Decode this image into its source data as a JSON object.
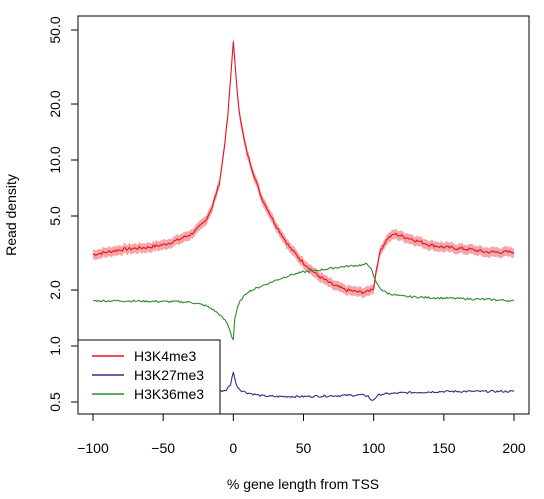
{
  "chart_data": {
    "type": "line",
    "title": "",
    "xlabel": "% gene length from TSS",
    "ylabel": "Read density",
    "x_ticks": [
      "-100",
      "-50",
      "0",
      "50",
      "100",
      "150",
      "200"
    ],
    "y_ticks": [
      "0.5",
      "1.0",
      "2.0",
      "5.0",
      "10.0",
      "20.0",
      "50.0"
    ],
    "x_tick_values": [
      -100,
      -50,
      0,
      50,
      100,
      150,
      200
    ],
    "y_tick_values": [
      0.5,
      1.0,
      2.0,
      5.0,
      10.0,
      20.0,
      50.0
    ],
    "xlim": [
      -108,
      208
    ],
    "ylim": [
      0.42,
      52
    ],
    "y_scale": "log",
    "grid": false,
    "legend_position": "bottom-left",
    "series": [
      {
        "name": "H3K4me3",
        "color": "#e8141b",
        "band_color": "#f4a6a8",
        "x": [
          -100,
          -90,
          -80,
          -70,
          -60,
          -50,
          -40,
          -30,
          -25,
          -20,
          -15,
          -10,
          -8,
          -6,
          -4,
          -2,
          0,
          2,
          4,
          6,
          8,
          10,
          15,
          20,
          30,
          40,
          50,
          60,
          70,
          80,
          90,
          95,
          100,
          102,
          105,
          110,
          115,
          120,
          130,
          140,
          150,
          160,
          170,
          180,
          190,
          200
        ],
        "values": [
          3.1,
          3.2,
          3.3,
          3.35,
          3.4,
          3.5,
          3.7,
          4.0,
          4.3,
          4.7,
          5.6,
          7.5,
          9.5,
          12.5,
          17.0,
          27.0,
          44.0,
          27.0,
          19.0,
          15.0,
          12.5,
          10.8,
          8.2,
          6.3,
          4.5,
          3.4,
          2.8,
          2.4,
          2.15,
          2.0,
          1.95,
          1.95,
          2.05,
          2.6,
          3.3,
          3.8,
          4.0,
          3.9,
          3.7,
          3.5,
          3.4,
          3.35,
          3.3,
          3.2,
          3.2,
          3.2
        ]
      },
      {
        "name": "H3K27me3",
        "color": "#2b2f8f",
        "x": [
          -100,
          -80,
          -60,
          -40,
          -20,
          -10,
          -5,
          -2,
          0,
          2,
          5,
          10,
          15,
          20,
          30,
          50,
          70,
          90,
          96,
          98,
          100,
          102,
          105,
          120,
          150,
          200
        ],
        "values": [
          0.55,
          0.555,
          0.56,
          0.56,
          0.56,
          0.57,
          0.58,
          0.62,
          0.73,
          0.62,
          0.58,
          0.56,
          0.55,
          0.54,
          0.535,
          0.535,
          0.54,
          0.545,
          0.54,
          0.51,
          0.515,
          0.535,
          0.55,
          0.56,
          0.57,
          0.57
        ]
      },
      {
        "name": "H3K36me3",
        "color": "#2e8b2e",
        "x": [
          -100,
          -80,
          -60,
          -40,
          -30,
          -20,
          -15,
          -10,
          -5,
          -3,
          -1,
          0,
          1,
          3,
          5,
          10,
          20,
          30,
          40,
          50,
          60,
          70,
          80,
          90,
          95,
          98,
          100,
          103,
          106,
          110,
          120,
          140,
          160,
          180,
          200
        ],
        "values": [
          1.75,
          1.75,
          1.74,
          1.73,
          1.72,
          1.65,
          1.58,
          1.48,
          1.35,
          1.25,
          1.12,
          1.08,
          1.4,
          1.6,
          1.75,
          1.95,
          2.1,
          2.25,
          2.4,
          2.5,
          2.55,
          2.62,
          2.68,
          2.72,
          2.75,
          2.65,
          2.35,
          2.12,
          2.0,
          1.92,
          1.85,
          1.82,
          1.8,
          1.78,
          1.75
        ]
      }
    ]
  }
}
